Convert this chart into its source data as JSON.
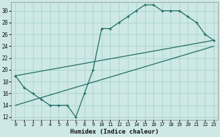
{
  "xlabel": "Humidex (Indice chaleur)",
  "xlim": [
    -0.5,
    23.5
  ],
  "ylim": [
    11.5,
    31.5
  ],
  "yticks": [
    12,
    14,
    16,
    18,
    20,
    22,
    24,
    26,
    28,
    30
  ],
  "xticks": [
    0,
    1,
    2,
    3,
    4,
    5,
    6,
    7,
    8,
    9,
    10,
    11,
    12,
    13,
    14,
    15,
    16,
    17,
    18,
    19,
    20,
    21,
    22,
    23
  ],
  "bg_color": "#cde8e5",
  "line_color": "#1f6b63",
  "grid_color": "#b0d8d4",
  "line1_x": [
    0,
    1,
    2,
    3,
    4,
    5,
    6,
    7,
    8,
    9,
    10,
    11,
    12,
    13,
    14,
    15,
    16,
    17,
    18,
    19,
    20,
    21,
    22,
    23
  ],
  "line1_y": [
    19,
    17,
    16,
    15,
    14,
    14,
    14,
    12,
    16,
    20,
    27,
    27,
    28,
    29,
    30,
    31,
    31,
    30,
    30,
    30,
    29,
    28,
    26,
    25
  ],
  "line2_x": [
    0,
    23
  ],
  "line2_y": [
    19,
    25
  ],
  "line3_x": [
    0,
    23
  ],
  "line3_y": [
    14,
    24
  ]
}
